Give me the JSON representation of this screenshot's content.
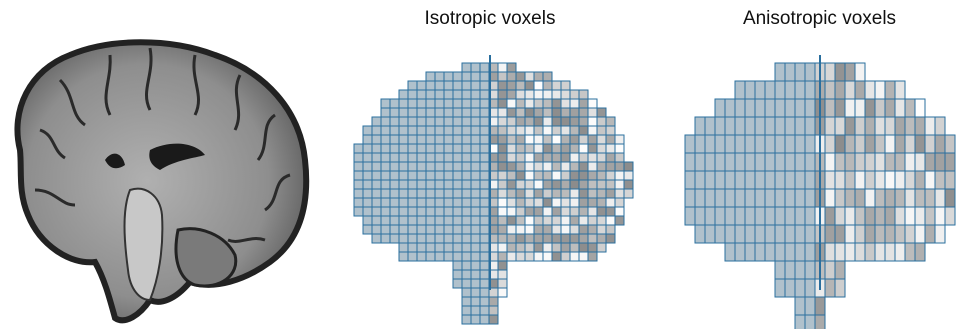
{
  "panels": [
    {
      "id": "mri",
      "title": ""
    },
    {
      "id": "iso",
      "title": "Isotropic voxels"
    },
    {
      "id": "aniso",
      "title": "Anisotropic voxels"
    }
  ],
  "colors": {
    "voxel_edge": "#2a6f9e",
    "voxel_face_light": "#f4f4f4",
    "voxel_face_dark": "#8a8a8a",
    "mri_dark": "#1a1a1a",
    "mri_gray": "#9a9a9a"
  }
}
